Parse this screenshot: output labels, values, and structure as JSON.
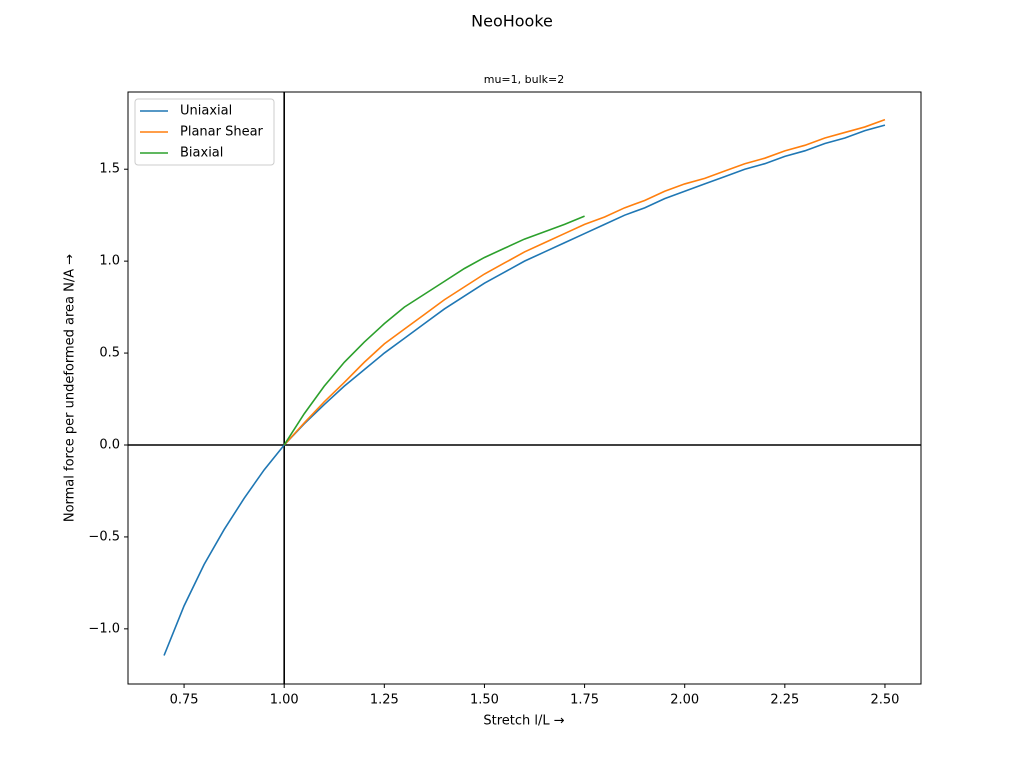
{
  "chart_data": {
    "type": "line",
    "title": "NeoHooke",
    "subtitle": "mu=1, bulk=2",
    "x_label": "Stretch l/L  →",
    "y_label": "Normal force per undeformed area N/A  →",
    "x": [
      0.7,
      0.75,
      0.8,
      0.85,
      0.9,
      0.95,
      1.0,
      1.05,
      1.1,
      1.15,
      1.2,
      1.25,
      1.3,
      1.35,
      1.4,
      1.45,
      1.5,
      1.55,
      1.6,
      1.65,
      1.7,
      1.75,
      1.8,
      1.85,
      1.9,
      1.95,
      2.0,
      2.05,
      2.1,
      2.15,
      2.2,
      2.25,
      2.3,
      2.35,
      2.4,
      2.45,
      2.5
    ],
    "series": [
      {
        "name": "Uniaxial",
        "color": "#1f77b4",
        "values": [
          -1.145,
          -0.875,
          -0.65,
          -0.46,
          -0.29,
          -0.135,
          0,
          0.115,
          0.22,
          0.32,
          0.41,
          0.5,
          0.58,
          0.66,
          0.74,
          0.81,
          0.88,
          0.94,
          1.0,
          1.05,
          1.1,
          1.15,
          1.2,
          1.25,
          1.29,
          1.34,
          1.38,
          1.42,
          1.46,
          1.5,
          1.53,
          1.57,
          1.6,
          1.64,
          1.67,
          1.71,
          1.74
        ]
      },
      {
        "name": "Planar Shear",
        "color": "#ff7f0e",
        "values": [
          null,
          null,
          null,
          null,
          null,
          null,
          0,
          0.12,
          0.235,
          0.34,
          0.45,
          0.55,
          0.63,
          0.71,
          0.79,
          0.86,
          0.93,
          0.99,
          1.05,
          1.1,
          1.15,
          1.2,
          1.24,
          1.29,
          1.33,
          1.38,
          1.42,
          1.45,
          1.49,
          1.53,
          1.56,
          1.6,
          1.63,
          1.67,
          1.7,
          1.73,
          1.77
        ]
      },
      {
        "name": "Biaxial",
        "color": "#2ca02c",
        "values": [
          null,
          null,
          null,
          null,
          null,
          null,
          0,
          0.17,
          0.32,
          0.45,
          0.56,
          0.66,
          0.75,
          0.82,
          0.89,
          0.96,
          1.02,
          1.07,
          1.12,
          1.16,
          1.2,
          1.245,
          null,
          null,
          null,
          null,
          null,
          null,
          null,
          null,
          null,
          null,
          null,
          null,
          null,
          null,
          null
        ]
      }
    ],
    "xlim": [
      0.61,
      2.59
    ],
    "ylim": [
      -1.3,
      1.92
    ],
    "xticks": [
      {
        "value": 0.75,
        "label": "0.75"
      },
      {
        "value": 1.0,
        "label": "1.00"
      },
      {
        "value": 1.25,
        "label": "1.25"
      },
      {
        "value": 1.5,
        "label": "1.50"
      },
      {
        "value": 1.75,
        "label": "1.75"
      },
      {
        "value": 2.0,
        "label": "2.00"
      },
      {
        "value": 2.25,
        "label": "2.25"
      },
      {
        "value": 2.5,
        "label": "2.50"
      }
    ],
    "yticks": [
      {
        "value": -1.0,
        "label": "−1.0"
      },
      {
        "value": -0.5,
        "label": "−0.5"
      },
      {
        "value": 0.0,
        "label": "0.0"
      },
      {
        "value": 0.5,
        "label": "0.5"
      },
      {
        "value": 1.0,
        "label": "1.0"
      },
      {
        "value": 1.5,
        "label": "1.5"
      }
    ],
    "hlines": [
      0
    ],
    "vlines": [
      1
    ],
    "legend": "upper left",
    "grid": false
  }
}
